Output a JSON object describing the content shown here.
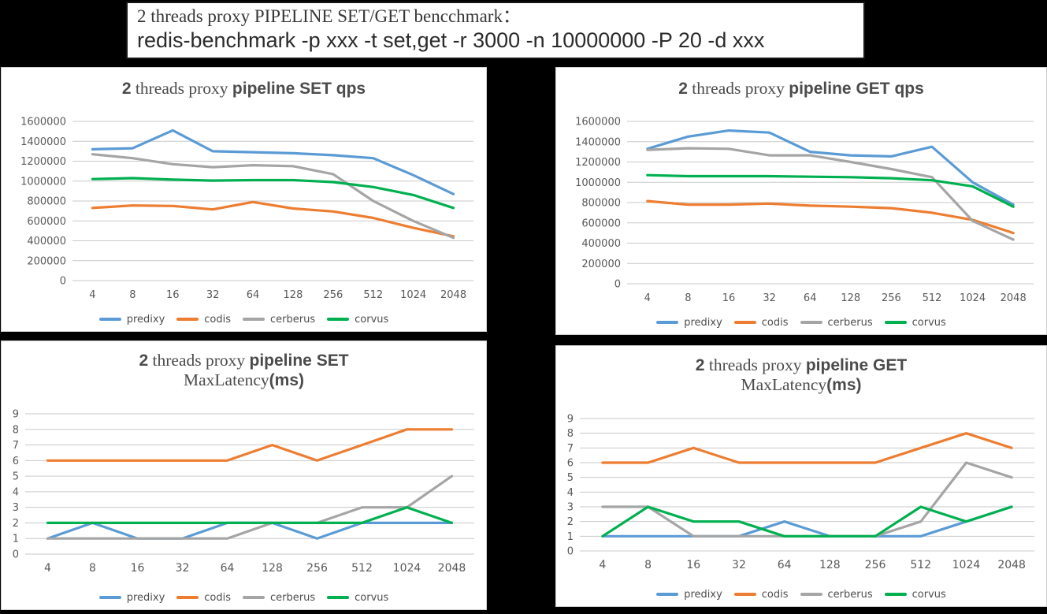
{
  "header": {
    "line1": "2 threads proxy PIPELINE SET/GET bencchmark：",
    "line2": "redis-benchmark -p xxx -t set,get -r 3000 -n 10000000 -P 20 -d xxx"
  },
  "palette": {
    "predixy": "#5B9BD5",
    "codis": "#ED7D31",
    "cerberus": "#A5A5A5",
    "corvus": "#00B050",
    "gridline": "#C9C9C9",
    "axis_text": "#595959",
    "title_text": "#4B4B4B",
    "panel_background": "#FFFFFF",
    "page_background": "#000000"
  },
  "chart_data": [
    {
      "id": "set-qps",
      "type": "line",
      "kind": "qps",
      "title_lines": [
        [
          {
            "text": "2",
            "style": "bold"
          },
          {
            "text": " threads proxy ",
            "style": "serif"
          },
          {
            "text": "pipeline SET qps",
            "style": "bold"
          }
        ]
      ],
      "categories": [
        "4",
        "8",
        "16",
        "32",
        "64",
        "128",
        "256",
        "512",
        "1024",
        "2048"
      ],
      "ylim": [
        0,
        1600000
      ],
      "ytick_step": 200000,
      "grid": true,
      "legend_position": "bottom",
      "series": [
        {
          "name": "predixy",
          "color": "#5B9BD5",
          "values": [
            1320000,
            1330000,
            1510000,
            1300000,
            1290000,
            1280000,
            1260000,
            1230000,
            1060000,
            870000
          ]
        },
        {
          "name": "codis",
          "color": "#ED7D31",
          "values": [
            730000,
            755000,
            750000,
            715000,
            790000,
            725000,
            695000,
            630000,
            530000,
            445000
          ]
        },
        {
          "name": "cerberus",
          "color": "#A5A5A5",
          "values": [
            1270000,
            1230000,
            1170000,
            1140000,
            1160000,
            1150000,
            1070000,
            800000,
            600000,
            430000
          ]
        },
        {
          "name": "corvus",
          "color": "#00B050",
          "values": [
            1020000,
            1030000,
            1015000,
            1005000,
            1010000,
            1010000,
            990000,
            940000,
            860000,
            730000
          ]
        }
      ]
    },
    {
      "id": "get-qps",
      "type": "line",
      "kind": "qps",
      "title_lines": [
        [
          {
            "text": "2",
            "style": "bold"
          },
          {
            "text": " threads proxy ",
            "style": "serif"
          },
          {
            "text": "pipeline GET qps",
            "style": "bold"
          }
        ]
      ],
      "categories": [
        "4",
        "8",
        "16",
        "32",
        "64",
        "128",
        "256",
        "512",
        "1024",
        "2048"
      ],
      "ylim": [
        0,
        1600000
      ],
      "ytick_step": 200000,
      "grid": true,
      "legend_position": "bottom",
      "series": [
        {
          "name": "predixy",
          "color": "#5B9BD5",
          "values": [
            1330000,
            1450000,
            1510000,
            1490000,
            1300000,
            1265000,
            1255000,
            1350000,
            1000000,
            780000
          ]
        },
        {
          "name": "codis",
          "color": "#ED7D31",
          "values": [
            815000,
            780000,
            780000,
            790000,
            770000,
            760000,
            745000,
            700000,
            630000,
            500000
          ]
        },
        {
          "name": "cerberus",
          "color": "#A5A5A5",
          "values": [
            1320000,
            1335000,
            1330000,
            1265000,
            1265000,
            1200000,
            1130000,
            1050000,
            620000,
            435000
          ]
        },
        {
          "name": "corvus",
          "color": "#00B050",
          "values": [
            1070000,
            1060000,
            1060000,
            1060000,
            1055000,
            1050000,
            1040000,
            1020000,
            960000,
            760000
          ]
        }
      ]
    },
    {
      "id": "set-latency",
      "type": "line",
      "kind": "latency",
      "title_lines": [
        [
          {
            "text": "2",
            "style": "bold"
          },
          {
            "text": " threads proxy ",
            "style": "serif"
          },
          {
            "text": "pipeline SET",
            "style": "bold"
          }
        ],
        [
          {
            "text": "MaxLatency",
            "style": "serif"
          },
          {
            "text": "(ms)",
            "style": "bold"
          }
        ]
      ],
      "categories": [
        "4",
        "8",
        "16",
        "32",
        "64",
        "128",
        "256",
        "512",
        "1024",
        "2048"
      ],
      "ylim": [
        0,
        9
      ],
      "ytick_step": 1,
      "grid": true,
      "legend_position": "bottom",
      "series": [
        {
          "name": "predixy",
          "color": "#5B9BD5",
          "values": [
            1,
            2,
            1,
            1,
            2,
            2,
            1,
            2,
            2,
            2
          ]
        },
        {
          "name": "codis",
          "color": "#ED7D31",
          "values": [
            6,
            6,
            6,
            6,
            6,
            7,
            6,
            7,
            8,
            8
          ]
        },
        {
          "name": "cerberus",
          "color": "#A5A5A5",
          "values": [
            1,
            1,
            1,
            1,
            1,
            2,
            2,
            3,
            3,
            5
          ]
        },
        {
          "name": "corvus",
          "color": "#00B050",
          "values": [
            2,
            2,
            2,
            2,
            2,
            2,
            2,
            2,
            3,
            2
          ]
        }
      ]
    },
    {
      "id": "get-latency",
      "type": "line",
      "kind": "latency",
      "title_lines": [
        [
          {
            "text": "2",
            "style": "bold"
          },
          {
            "text": " threads proxy ",
            "style": "serif"
          },
          {
            "text": "pipeline GET",
            "style": "bold"
          }
        ],
        [
          {
            "text": "MaxLatency",
            "style": "serif"
          },
          {
            "text": "(ms)",
            "style": "bold"
          }
        ]
      ],
      "categories": [
        "4",
        "8",
        "16",
        "32",
        "64",
        "128",
        "256",
        "512",
        "1024",
        "2048"
      ],
      "ylim": [
        0,
        9
      ],
      "ytick_step": 1,
      "grid": true,
      "legend_position": "bottom",
      "series": [
        {
          "name": "predixy",
          "color": "#5B9BD5",
          "values": [
            1,
            1,
            1,
            1,
            2,
            1,
            1,
            1,
            2,
            3
          ]
        },
        {
          "name": "codis",
          "color": "#ED7D31",
          "values": [
            6,
            6,
            7,
            6,
            6,
            6,
            6,
            7,
            8,
            7
          ]
        },
        {
          "name": "cerberus",
          "color": "#A5A5A5",
          "values": [
            3,
            3,
            1,
            1,
            1,
            1,
            1,
            2,
            6,
            5
          ]
        },
        {
          "name": "corvus",
          "color": "#00B050",
          "values": [
            1,
            3,
            2,
            2,
            1,
            1,
            1,
            3,
            2,
            3
          ]
        }
      ]
    }
  ]
}
